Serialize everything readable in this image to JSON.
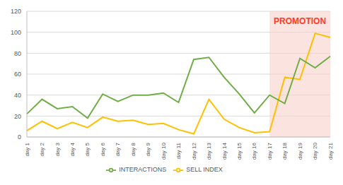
{
  "chart_data": {
    "type": "line",
    "categories": [
      "day 1",
      "day 2",
      "day 3",
      "day 4",
      "day 5",
      "day 6",
      "day 7",
      "day 8",
      "day 9",
      "day 10",
      "day 11",
      "day 12",
      "day 13",
      "day 14",
      "day 15",
      "day 16",
      "day 17",
      "day 18",
      "day 19",
      "day 20",
      "day 21"
    ],
    "series": [
      {
        "name": "SELL INDEX",
        "color": "#FFC000",
        "values": [
          6,
          15,
          8,
          14,
          9,
          19,
          15,
          16,
          12,
          13,
          7,
          3,
          36,
          17,
          9,
          4,
          5,
          57,
          55,
          99,
          95
        ]
      },
      {
        "name": "INTERACTIONS",
        "color": "#70AD47",
        "values": [
          22,
          36,
          27,
          29,
          18,
          41,
          34,
          40,
          40,
          42,
          33,
          74,
          76,
          57,
          41,
          23,
          40,
          32,
          75,
          66,
          77
        ]
      }
    ],
    "ylim": [
      0,
      120
    ],
    "yticks": [
      0,
      20,
      40,
      60,
      80,
      100,
      120
    ],
    "grid": true,
    "legend": "bottom",
    "annotations": [
      {
        "text": "PROMOTION",
        "from": "day 17",
        "to": "day 21"
      }
    ]
  }
}
